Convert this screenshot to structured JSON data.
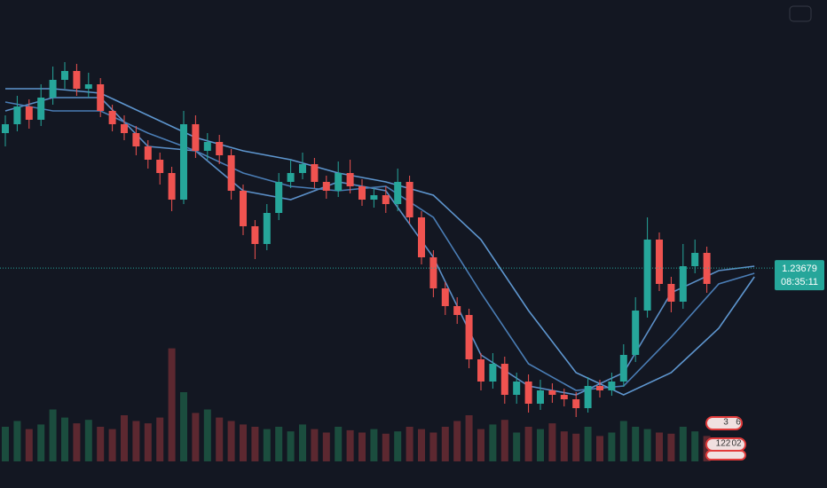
{
  "chart_data": {
    "type": "candlestick",
    "ylim": [
      1.212,
      1.267
    ],
    "open": [
      1.252,
      1.253,
      1.255,
      1.2535,
      1.256,
      1.258,
      1.259,
      1.257,
      1.2575,
      1.2545,
      1.253,
      1.252,
      1.2505,
      1.249,
      1.2475,
      1.2445,
      1.253,
      1.25,
      1.251,
      1.2495,
      1.2455,
      1.2415,
      1.2395,
      1.243,
      1.2465,
      1.2475,
      1.2485,
      1.2465,
      1.2455,
      1.2475,
      1.246,
      1.2445,
      1.245,
      1.244,
      1.2465,
      1.2425,
      1.238,
      1.2345,
      1.2325,
      1.2315,
      1.2265,
      1.224,
      1.226,
      1.2225,
      1.224,
      1.2215,
      1.223,
      1.2225,
      1.222,
      1.221,
      1.2235,
      1.223,
      1.224,
      1.227,
      1.232,
      1.24,
      1.235,
      1.233,
      1.237,
      1.2385
    ],
    "high": [
      1.254,
      1.2562,
      1.2558,
      1.2575,
      1.2595,
      1.26,
      1.2598,
      1.2588,
      1.2582,
      1.2552,
      1.254,
      1.2528,
      1.2512,
      1.2498,
      1.2482,
      1.2545,
      1.254,
      1.252,
      1.2518,
      1.2502,
      1.2462,
      1.2422,
      1.244,
      1.2475,
      1.249,
      1.2498,
      1.2492,
      1.2472,
      1.2488,
      1.249,
      1.2468,
      1.2458,
      1.246,
      1.248,
      1.2472,
      1.2432,
      1.2388,
      1.2352,
      1.2335,
      1.2322,
      1.2272,
      1.2272,
      1.2268,
      1.225,
      1.2248,
      1.2242,
      1.2238,
      1.2232,
      1.2228,
      1.2245,
      1.2242,
      1.225,
      1.2282,
      1.2335,
      1.2425,
      1.2408,
      1.2358,
      1.2395,
      1.24,
      1.2392
    ],
    "low": [
      1.2505,
      1.2522,
      1.2525,
      1.2528,
      1.2552,
      1.257,
      1.2562,
      1.256,
      1.2538,
      1.2522,
      1.2512,
      1.2495,
      1.248,
      1.2462,
      1.2432,
      1.244,
      1.2492,
      1.249,
      1.2485,
      1.2445,
      1.2405,
      1.2378,
      1.2388,
      1.2422,
      1.2458,
      1.2468,
      1.2458,
      1.2446,
      1.2448,
      1.2452,
      1.2438,
      1.2436,
      1.243,
      1.2432,
      1.2418,
      1.2372,
      1.2335,
      1.2315,
      1.2305,
      1.2255,
      1.223,
      1.2232,
      1.2215,
      1.2215,
      1.2205,
      1.2208,
      1.2216,
      1.2212,
      1.22,
      1.2205,
      1.2222,
      1.2224,
      1.2234,
      1.2262,
      1.2312,
      1.2342,
      1.2318,
      1.2322,
      1.2362,
      1.234
    ],
    "close": [
      1.253,
      1.255,
      1.2535,
      1.256,
      1.258,
      1.259,
      1.257,
      1.2575,
      1.2545,
      1.253,
      1.252,
      1.2505,
      1.249,
      1.2475,
      1.2445,
      1.253,
      1.25,
      1.251,
      1.2495,
      1.2455,
      1.2415,
      1.2395,
      1.243,
      1.2465,
      1.2475,
      1.2485,
      1.2465,
      1.2455,
      1.2475,
      1.246,
      1.2445,
      1.245,
      1.244,
      1.2465,
      1.2425,
      1.238,
      1.2345,
      1.2325,
      1.2315,
      1.2265,
      1.224,
      1.226,
      1.2225,
      1.224,
      1.2215,
      1.223,
      1.2225,
      1.222,
      1.221,
      1.2235,
      1.223,
      1.224,
      1.227,
      1.232,
      1.24,
      1.235,
      1.233,
      1.237,
      1.2385,
      1.235
    ],
    "up_color": "#26a69a",
    "down_color": "#ef5350",
    "volume": [
      30,
      35,
      28,
      32,
      45,
      38,
      33,
      36,
      30,
      28,
      40,
      35,
      33,
      38,
      98,
      60,
      42,
      45,
      38,
      35,
      32,
      30,
      28,
      30,
      26,
      32,
      28,
      25,
      30,
      27,
      25,
      28,
      24,
      26,
      30,
      28,
      25,
      30,
      35,
      40,
      28,
      32,
      36,
      25,
      30,
      28,
      33,
      26,
      24,
      30,
      22,
      25,
      35,
      30,
      28,
      25,
      24,
      30,
      26,
      22
    ],
    "vlim": [
      0,
      100
    ],
    "volume_up_color": "#1b4d3e",
    "volume_down_color": "#5c2830",
    "ma_x": [
      0,
      4,
      8,
      12,
      16,
      20,
      24,
      28,
      32,
      36,
      40,
      44,
      48,
      52,
      56,
      60,
      63
    ],
    "moving_averages": [
      {
        "color": "#5b8fc7",
        "values": [
          1.2545,
          1.256,
          1.256,
          1.2505,
          1.25,
          1.2455,
          1.2445,
          1.2465,
          1.2455,
          1.238,
          1.227,
          1.2235,
          1.2225,
          1.225,
          1.234,
          1.2365,
          1.237
        ]
      },
      {
        "color": "#4a7db5",
        "values": [
          1.2555,
          1.2545,
          1.2545,
          1.252,
          1.25,
          1.2475,
          1.246,
          1.2455,
          1.246,
          1.2425,
          1.234,
          1.226,
          1.223,
          1.2235,
          1.229,
          1.235,
          1.2362
        ]
      },
      {
        "color": "#5e96cf",
        "values": [
          1.257,
          1.257,
          1.2565,
          1.254,
          1.2515,
          1.25,
          1.249,
          1.2475,
          1.2465,
          1.245,
          1.24,
          1.232,
          1.225,
          1.2225,
          1.225,
          1.23,
          1.2358
        ]
      }
    ],
    "last_price": 1.23679,
    "countdown": "08:35:11",
    "badges": [
      "3",
      "6",
      "122",
      "02"
    ]
  }
}
